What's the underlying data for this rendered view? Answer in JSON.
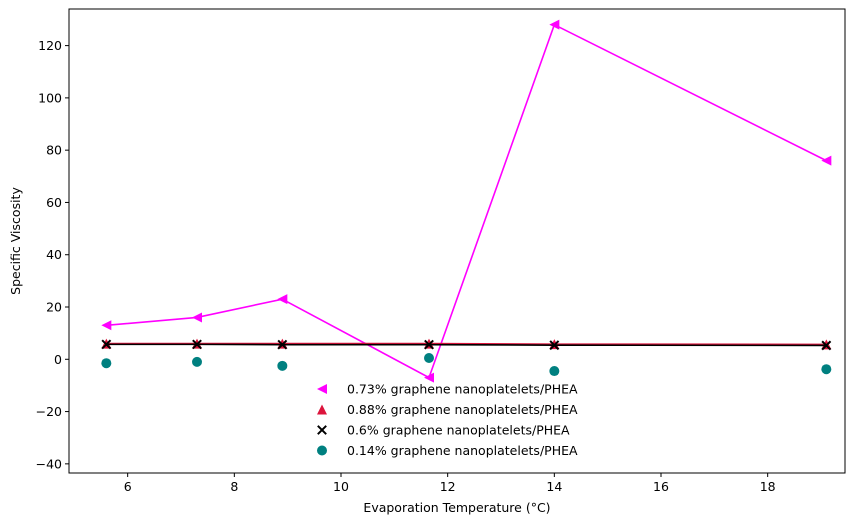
{
  "chart_data": {
    "type": "line",
    "title": "",
    "xlabel": "Evaporation Temperature (°C)",
    "ylabel": "Specific Viscosity",
    "xlim": [
      4.9,
      19.45
    ],
    "ylim": [
      -43.5,
      134
    ],
    "xticks": [
      6,
      8,
      10,
      12,
      14,
      16,
      18
    ],
    "yticks": [
      -40,
      -20,
      0,
      20,
      40,
      60,
      80,
      100,
      120
    ],
    "grid": false,
    "legend_position": "bottom-center",
    "x": [
      5.6,
      7.3,
      8.9,
      11.65,
      14.0,
      19.1
    ],
    "series": [
      {
        "name": "0.73% graphene nanoplatelets/PHEA",
        "marker": "triangle-left",
        "color": "#ff00ff",
        "line": true,
        "values": [
          13.0,
          16.0,
          23.0,
          -7.0,
          128.0,
          76.0
        ]
      },
      {
        "name": "0.88% graphene nanoplatelets/PHEA",
        "marker": "triangle-up",
        "color": "#dc143c",
        "line": true,
        "values": [
          6.0,
          6.0,
          6.0,
          6.0,
          5.8,
          5.7
        ]
      },
      {
        "name": "0.6% graphene nanoplatelets/PHEA",
        "marker": "x",
        "color": "#000000",
        "line": true,
        "values": [
          5.7,
          5.7,
          5.6,
          5.6,
          5.4,
          5.3
        ]
      },
      {
        "name": "0.14% graphene nanoplatelets/PHEA",
        "marker": "circle",
        "color": "#008080",
        "line": false,
        "values": [
          -1.5,
          -1.0,
          -2.5,
          0.5,
          -4.5,
          -3.8
        ]
      }
    ]
  }
}
